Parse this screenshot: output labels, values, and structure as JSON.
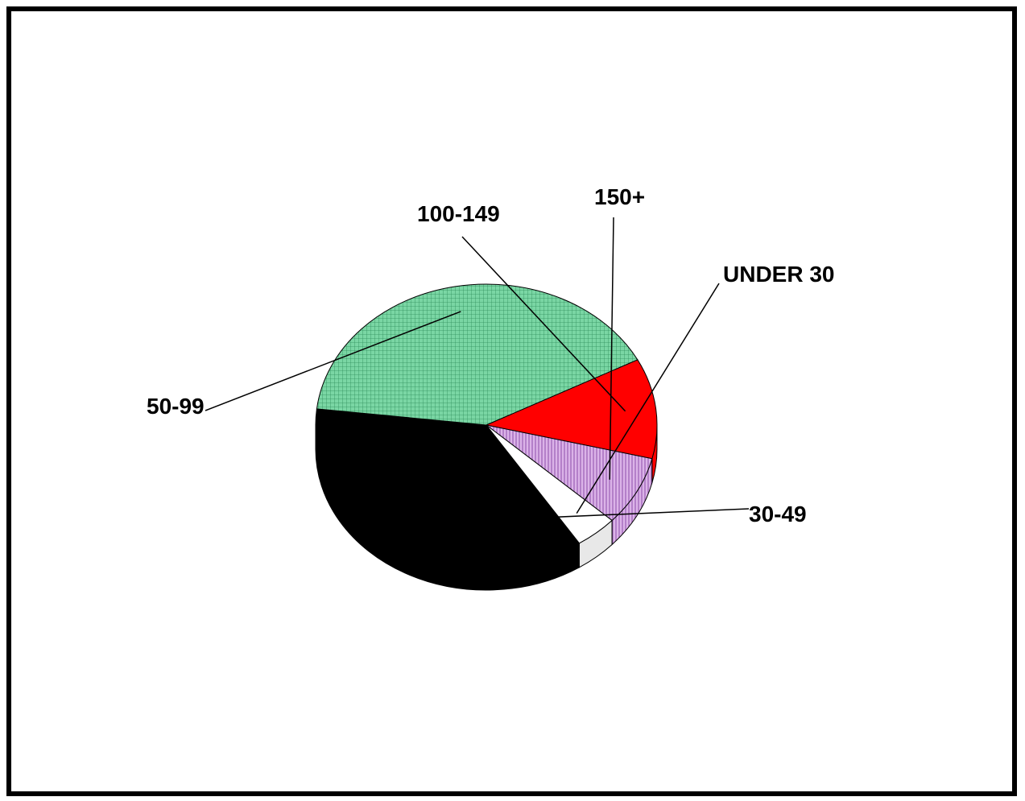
{
  "chart_data": {
    "type": "pie",
    "style": "3d-tilted",
    "slices": [
      {
        "label": "30-49",
        "value": 36.0,
        "color": "#000000",
        "pattern": "solid"
      },
      {
        "label": "50-99",
        "value": 40.5,
        "color": "#7ad6a4",
        "pattern": "grid"
      },
      {
        "label": "100-149",
        "value": 11.5,
        "color": "#ff0000",
        "pattern": "solid"
      },
      {
        "label": "150+",
        "value": 8.0,
        "color": "#cc99dd",
        "pattern": "vertical-stripes"
      },
      {
        "label": "UNDER 30",
        "value": 4.0,
        "color": "#ffffff",
        "pattern": "solid"
      }
    ],
    "labels_outside": true,
    "legend": "none"
  }
}
